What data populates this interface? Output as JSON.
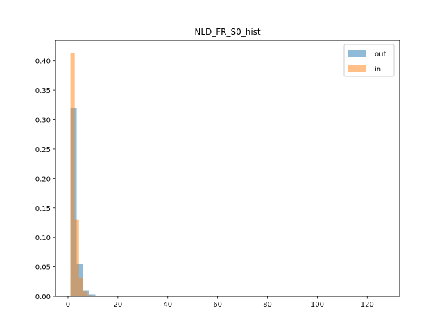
{
  "chart_data": {
    "type": "histogram",
    "title": "NLD_FR_S0_hist",
    "xlabel": "",
    "ylabel": "",
    "xlim": [
      -5,
      133
    ],
    "ylim": [
      0,
      0.435
    ],
    "xticks": [
      0,
      20,
      40,
      60,
      80,
      100,
      120
    ],
    "yticks": [
      0.0,
      0.05,
      0.1,
      0.15,
      0.2,
      0.25,
      0.3,
      0.35,
      0.4
    ],
    "ytick_labels": [
      "0.00",
      "0.05",
      "0.10",
      "0.15",
      "0.20",
      "0.25",
      "0.30",
      "0.35",
      "0.40"
    ],
    "grid": false,
    "legend_position": "top-right",
    "series": [
      {
        "name": "out",
        "color": "#1f77b4",
        "alpha": 0.5,
        "bins": [
          {
            "x0": 1.0,
            "x1": 3.5,
            "value": 0.32
          },
          {
            "x0": 3.5,
            "x1": 6.0,
            "value": 0.055
          },
          {
            "x0": 6.0,
            "x1": 8.5,
            "value": 0.01
          },
          {
            "x0": 8.5,
            "x1": 11.0,
            "value": 0.003
          },
          {
            "x0": 11.0,
            "x1": 13.5,
            "value": 0.0007
          }
        ]
      },
      {
        "name": "in",
        "color": "#ff7f0e",
        "alpha": 0.5,
        "bins": [
          {
            "x0": 1.0,
            "x1": 2.7,
            "value": 0.413
          },
          {
            "x0": 2.7,
            "x1": 4.4,
            "value": 0.13
          },
          {
            "x0": 4.4,
            "x1": 6.1,
            "value": 0.032
          },
          {
            "x0": 6.1,
            "x1": 7.8,
            "value": 0.008
          },
          {
            "x0": 7.8,
            "x1": 9.5,
            "value": 0.002
          }
        ]
      }
    ]
  }
}
